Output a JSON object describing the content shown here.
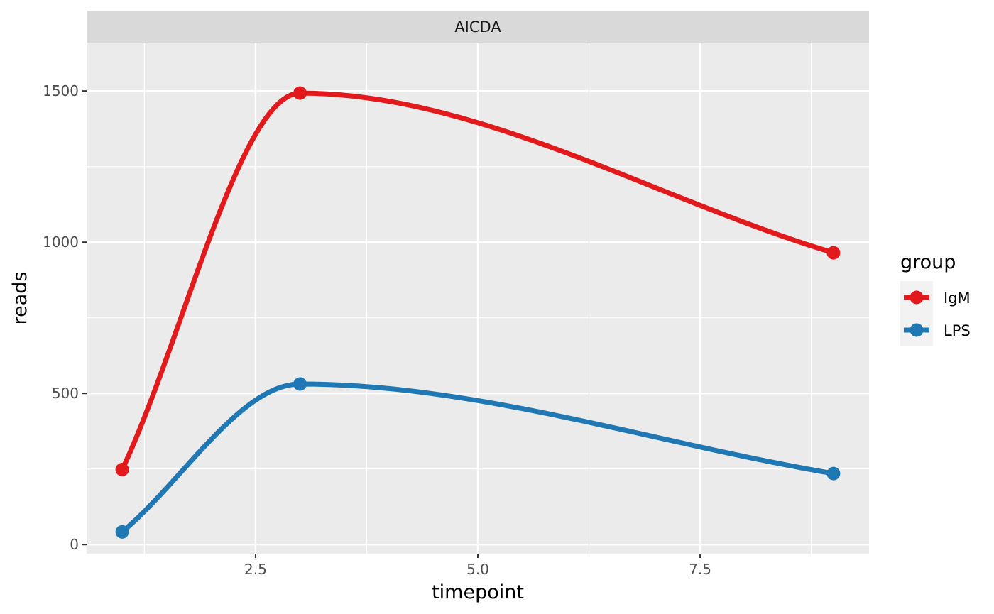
{
  "chart_data": {
    "type": "line",
    "facet": "AICDA",
    "xlabel": "timepoint",
    "ylabel": "reads",
    "xlim": [
      0.6,
      9.4
    ],
    "ylim": [
      -30,
      1660
    ],
    "x_ticks": [
      2.5,
      5.0,
      7.5
    ],
    "x_tick_labels": [
      "2.5",
      "5.0",
      "7.5"
    ],
    "y_ticks": [
      0,
      500,
      1000,
      1500
    ],
    "y_tick_labels": [
      "0",
      "500",
      "1000",
      "1500"
    ],
    "grid": true,
    "legend": {
      "title": "group",
      "position": "right"
    },
    "series": [
      {
        "name": "IgM",
        "color": "#e31a1c",
        "x": [
          1,
          3,
          9
        ],
        "y": [
          248,
          1493,
          965
        ]
      },
      {
        "name": "LPS",
        "color": "#1f78b4",
        "x": [
          1,
          3,
          9
        ],
        "y": [
          42,
          531,
          235
        ]
      }
    ]
  }
}
